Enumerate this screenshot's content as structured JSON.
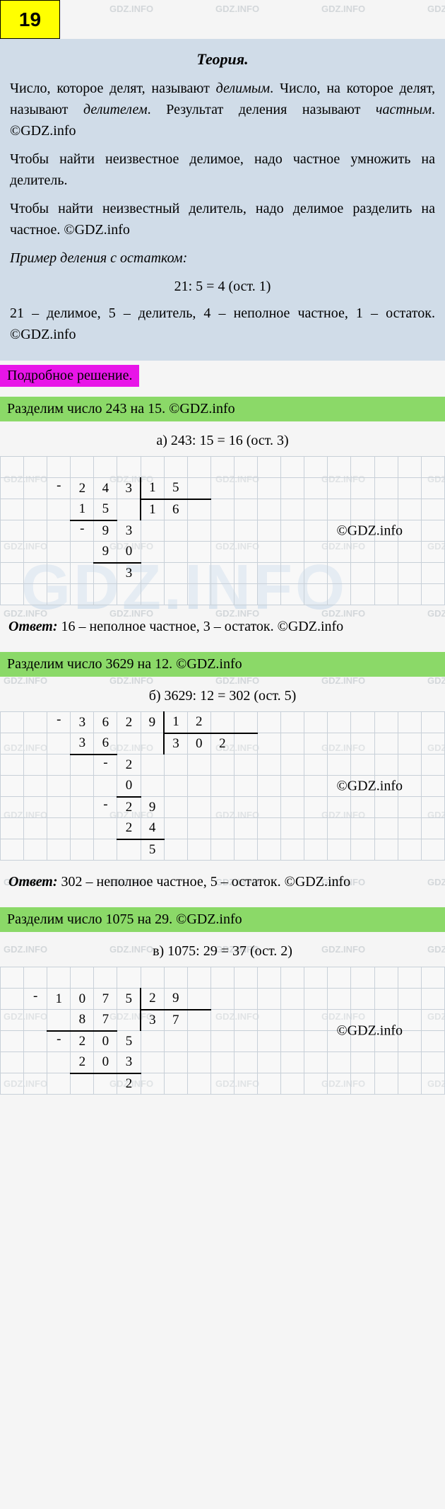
{
  "badge": "19",
  "watermark_text": "GDZ.INFO",
  "big_watermark": "GDZ.INFO",
  "theory": {
    "title": "Теория.",
    "p1_a": "Число, которое делят, называют ",
    "p1_b": "делимым",
    "p1_c": ". Число, на которое делят, называют ",
    "p1_d": "делителем",
    "p1_e": ". Результат деления называют ",
    "p1_f": "частным",
    "p1_g": ". ©GDZ.info",
    "p2": "Чтобы найти неизвестное делимое, надо частное умножить на делитель.",
    "p3": "Чтобы найти неизвестный делитель, надо делимое разделить на частное. ©GDZ.info",
    "example_label": "Пример деления с остатком:",
    "example_eq": "21: 5 = 4 (ост. 1)",
    "example_expl": "21 – делимое, 5 – делитель, 4 – неполное частное, 1 – остаток. ©GDZ.info"
  },
  "solution_header": "Подробное решение.",
  "gdz_label": "©GDZ.info",
  "problems": [
    {
      "green": "Разделим число 243 на 15. ©GDZ.info",
      "calc": "а) 243: 15 = 16 (ост. 3)",
      "answer_label": "Ответ:",
      "answer_text": " 16 – неполное частное, 3 – остаток. ©GDZ.info",
      "grid": {
        "dividend": [
          "2",
          "4",
          "3"
        ],
        "divisor": [
          "1",
          "5"
        ],
        "quotient": [
          "1",
          "6"
        ],
        "s1": [
          "1",
          "5"
        ],
        "r1": [
          "9",
          "3"
        ],
        "s2": [
          "9",
          "0"
        ],
        "r2": [
          "3"
        ]
      }
    },
    {
      "green": "Разделим число 3629 на 12. ©GDZ.info",
      "calc": "б) 3629: 12 = 302 (ост. 5)",
      "answer_label": "Ответ:",
      "answer_text": " 302 – неполное частное, 5 – остаток. ©GDZ.info",
      "grid": {
        "dividend": [
          "3",
          "6",
          "2",
          "9"
        ],
        "divisor": [
          "1",
          "2"
        ],
        "quotient": [
          "3",
          "0",
          "2"
        ],
        "s1": [
          "3",
          "6"
        ],
        "r1": [
          "2"
        ],
        "s2": [
          "0"
        ],
        "r2": [
          "2",
          "9"
        ],
        "s3": [
          "2",
          "4"
        ],
        "r3": [
          "5"
        ]
      }
    },
    {
      "green": "Разделим число 1075 на 29. ©GDZ.info",
      "calc": "в) 1075: 29 = 37 (ост. 2)",
      "grid": {
        "dividend": [
          "1",
          "0",
          "7",
          "5"
        ],
        "divisor": [
          "2",
          "9"
        ],
        "quotient": [
          "3",
          "7"
        ],
        "s1": [
          "8",
          "7"
        ],
        "r1": [
          "2",
          "0",
          "5"
        ],
        "s2": [
          "2",
          "0",
          "3"
        ],
        "r2": [
          "2"
        ]
      }
    }
  ]
}
